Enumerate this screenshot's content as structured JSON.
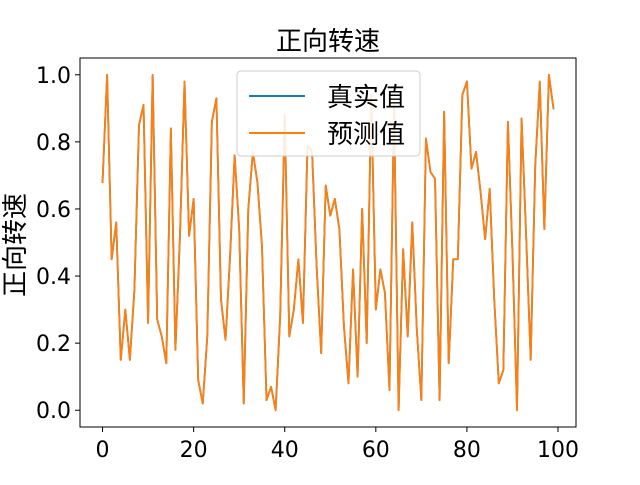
{
  "chart_data": {
    "type": "line",
    "title": "正向转速",
    "xlabel": "",
    "ylabel": "正向转速",
    "xlim": [
      -4.95,
      103.95
    ],
    "ylim": [
      -0.05,
      1.05
    ],
    "x_ticks": [
      0,
      20,
      40,
      60,
      80,
      100
    ],
    "y_ticks": [
      0.0,
      0.2,
      0.4,
      0.6,
      0.8,
      1.0
    ],
    "x_tick_labels": [
      "0",
      "20",
      "40",
      "60",
      "80",
      "100"
    ],
    "y_tick_labels": [
      "0.0",
      "0.2",
      "0.4",
      "0.6",
      "0.8",
      "1.0"
    ],
    "grid": false,
    "legend_position": "top-center",
    "series": [
      {
        "name": "真实值",
        "color": "#1f77b4",
        "values": [
          0.68,
          1.0,
          0.45,
          0.56,
          0.15,
          0.3,
          0.15,
          0.36,
          0.85,
          0.91,
          0.26,
          1.0,
          0.27,
          0.22,
          0.14,
          0.84,
          0.18,
          0.52,
          0.98,
          0.52,
          0.63,
          0.09,
          0.02,
          0.22,
          0.86,
          0.93,
          0.33,
          0.21,
          0.46,
          0.76,
          0.54,
          0.02,
          0.6,
          0.77,
          0.68,
          0.49,
          0.03,
          0.07,
          0.0,
          0.28,
          0.88,
          0.22,
          0.3,
          0.45,
          0.26,
          0.79,
          0.77,
          0.43,
          0.17,
          0.67,
          0.58,
          0.63,
          0.54,
          0.25,
          0.08,
          0.42,
          0.1,
          0.6,
          0.2,
          0.94,
          0.3,
          0.42,
          0.35,
          0.06,
          0.91,
          0.0,
          0.48,
          0.22,
          0.56,
          0.24,
          0.03,
          0.81,
          0.71,
          0.69,
          0.03,
          0.89,
          0.14,
          0.45,
          0.45,
          0.94,
          0.98,
          0.72,
          0.77,
          0.65,
          0.51,
          0.66,
          0.33,
          0.08,
          0.12,
          0.86,
          0.47,
          0.0,
          0.87,
          0.52,
          0.15,
          0.73,
          0.98,
          0.54,
          1.0,
          0.9
        ]
      },
      {
        "name": "预测值",
        "color": "#ff7f0e",
        "values": [
          0.68,
          1.0,
          0.45,
          0.56,
          0.15,
          0.3,
          0.15,
          0.36,
          0.85,
          0.91,
          0.26,
          1.0,
          0.27,
          0.22,
          0.14,
          0.84,
          0.18,
          0.52,
          0.98,
          0.52,
          0.63,
          0.09,
          0.02,
          0.22,
          0.86,
          0.93,
          0.33,
          0.21,
          0.46,
          0.76,
          0.54,
          0.02,
          0.6,
          0.77,
          0.68,
          0.49,
          0.03,
          0.07,
          0.0,
          0.28,
          0.88,
          0.22,
          0.3,
          0.45,
          0.26,
          0.79,
          0.77,
          0.43,
          0.17,
          0.67,
          0.58,
          0.63,
          0.54,
          0.25,
          0.08,
          0.42,
          0.1,
          0.6,
          0.2,
          0.94,
          0.3,
          0.42,
          0.35,
          0.06,
          0.91,
          0.0,
          0.48,
          0.22,
          0.56,
          0.24,
          0.03,
          0.81,
          0.71,
          0.69,
          0.03,
          0.89,
          0.14,
          0.45,
          0.45,
          0.94,
          0.98,
          0.72,
          0.77,
          0.65,
          0.51,
          0.66,
          0.33,
          0.08,
          0.12,
          0.86,
          0.47,
          0.0,
          0.87,
          0.52,
          0.15,
          0.73,
          0.98,
          0.54,
          1.0,
          0.9
        ]
      }
    ]
  }
}
